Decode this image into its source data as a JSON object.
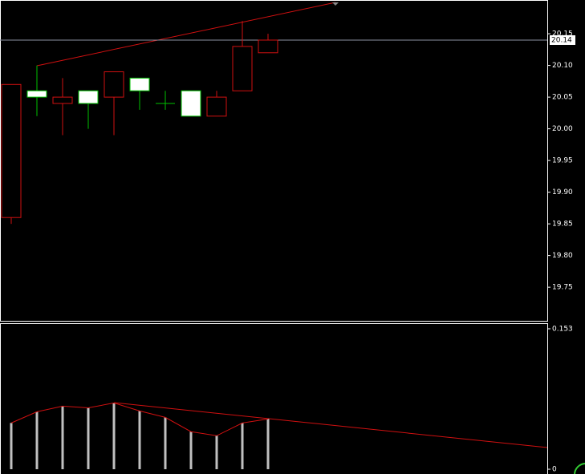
{
  "chart_data": [
    {
      "type": "candlestick",
      "up_color": "#00c000",
      "up_fill": "#ffffff",
      "down_color": "#d01010",
      "down_fill": "#000000",
      "open": [
        20.07,
        20.05,
        20.05,
        20.04,
        20.09,
        20.06,
        20.04,
        20.02,
        20.05,
        20.13,
        20.14
      ],
      "high": [
        20.07,
        20.1,
        20.08,
        20.06,
        20.09,
        20.08,
        20.06,
        20.06,
        20.06,
        20.17,
        20.15
      ],
      "low": [
        19.85,
        20.02,
        19.99,
        20.0,
        19.99,
        20.03,
        20.03,
        20.02,
        20.02,
        20.06,
        20.12
      ],
      "close": [
        19.86,
        20.06,
        20.04,
        20.06,
        20.05,
        20.08,
        20.04,
        20.06,
        20.02,
        20.06,
        20.12
      ],
      "ylim": [
        19.697,
        20.202
      ],
      "yticks": [
        19.75,
        {
          "value": 19.8,
          "label": "19.80"
        },
        19.85,
        {
          "value": 19.9,
          "label": "19.90"
        },
        19.95,
        {
          "value": 20,
          "label": "20.00"
        },
        20.05,
        {
          "value": 20.1,
          "label": "20.10"
        },
        20.15
      ],
      "current_price": {
        "value": 20.14,
        "label": "20.14"
      }
    },
    {
      "type": "bar",
      "color": "#c0c0c0",
      "line_color": "#d01010",
      "values": [
        0.0504,
        0.0626,
        0.0687,
        0.0669,
        0.0722,
        0.0635,
        0.0565,
        0.0409,
        0.0365,
        0.0504,
        0.0548
      ],
      "ylim": [
        -0.0052,
        0.1582
      ],
      "yticks": [
        0,
        0.153
      ]
    }
  ]
}
